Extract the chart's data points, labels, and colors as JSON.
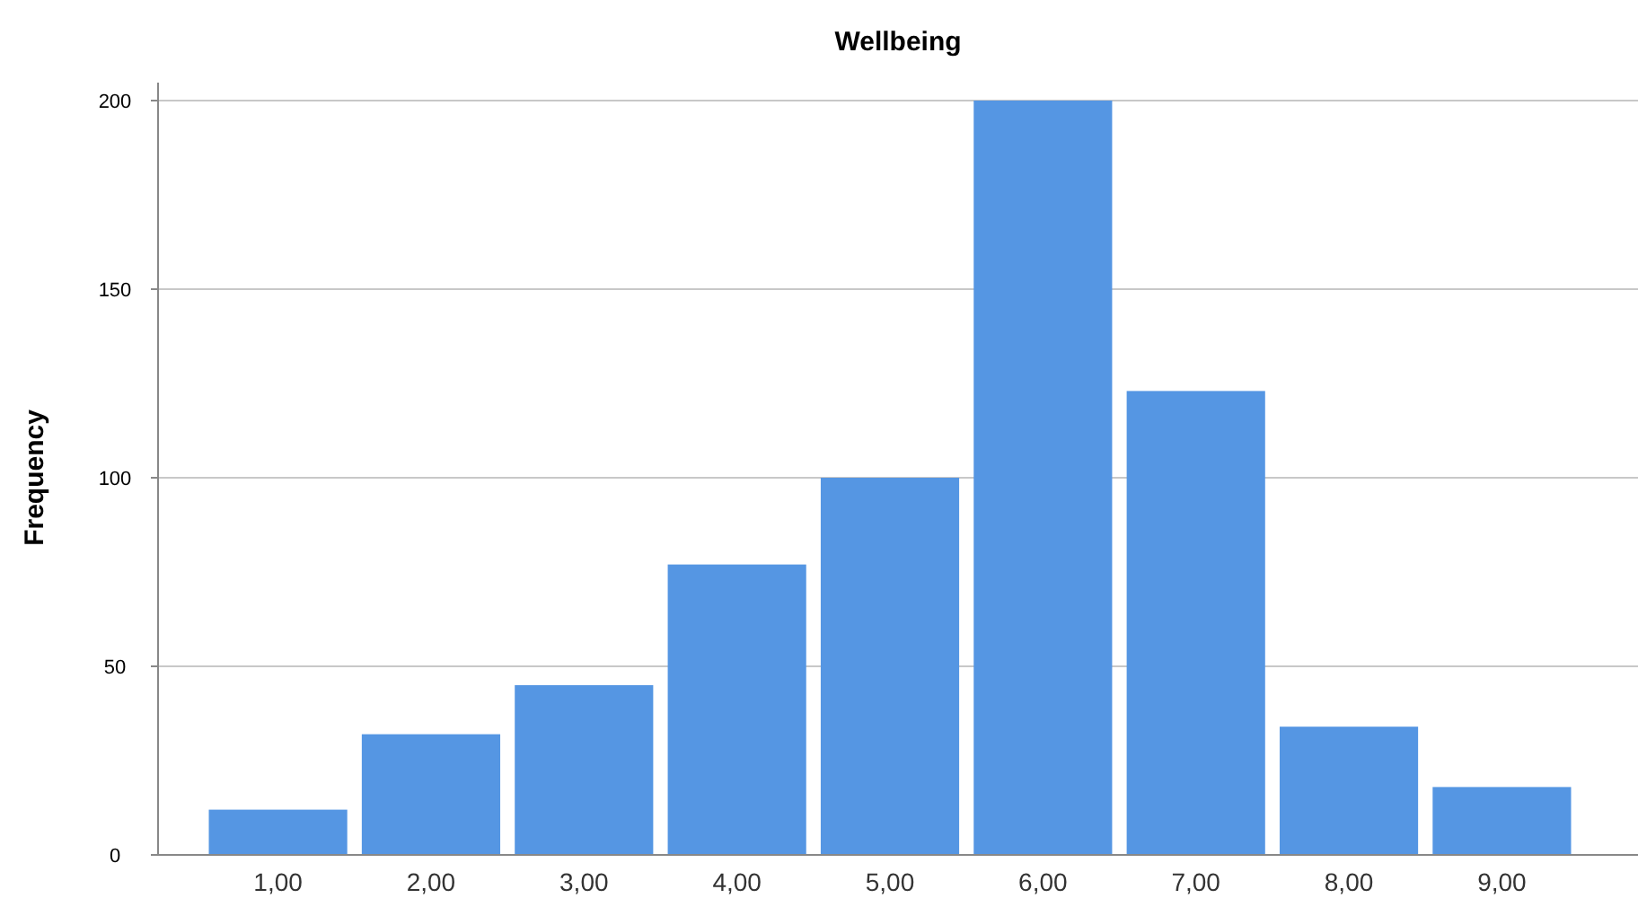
{
  "chart_data": {
    "type": "bar",
    "title": "Wellbeing",
    "ylabel": "Frequency",
    "categories": [
      "1,00",
      "2,00",
      "3,00",
      "4,00",
      "5,00",
      "6,00",
      "7,00",
      "8,00",
      "9,00"
    ],
    "values": [
      12,
      32,
      45,
      77,
      100,
      200,
      123,
      34,
      18
    ],
    "color": "#5596e3",
    "ylim": [
      0,
      200
    ],
    "yticks": [
      0,
      50,
      100,
      150,
      200
    ],
    "grid": "y"
  }
}
